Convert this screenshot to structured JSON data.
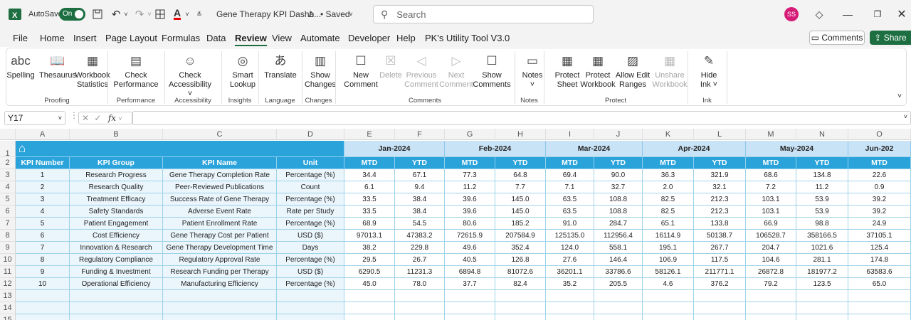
{
  "app": {
    "autosave_label": "AutoSave",
    "toggle": "On",
    "doc_title": "Gene Therapy KPI Dashb...",
    "saved": "• Saved",
    "search_placeholder": "Search",
    "avatar": "SS"
  },
  "menu": [
    "File",
    "Home",
    "Insert",
    "Page Layout",
    "Formulas",
    "Data",
    "Review",
    "View",
    "Automate",
    "Developer",
    "Help",
    "PK's Utility Tool V3.0"
  ],
  "comments_btn": "Comments",
  "share_btn": "Share",
  "ribbon": {
    "buttons": [
      {
        "l1": "Spelling",
        "l2": "",
        "icon": "spelling-icon",
        "dis": false
      },
      {
        "l1": "Thesaurus",
        "l2": "",
        "icon": "thesaurus-icon",
        "dis": false
      },
      {
        "l1": "Workbook",
        "l2": "Statistics",
        "icon": "statistics-icon",
        "dis": false
      },
      {
        "l1": "Check",
        "l2": "Performance",
        "icon": "performance-icon",
        "dis": false
      },
      {
        "l1": "Check",
        "l2": "Accessibility ˅",
        "icon": "accessibility-icon",
        "dis": false
      },
      {
        "l1": "Smart",
        "l2": "Lookup",
        "icon": "lookup-icon",
        "dis": false
      },
      {
        "l1": "Translate",
        "l2": "",
        "icon": "translate-icon",
        "dis": false
      },
      {
        "l1": "Show",
        "l2": "Changes",
        "icon": "changes-icon",
        "dis": false
      },
      {
        "l1": "New",
        "l2": "Comment",
        "icon": "new-comment-icon",
        "dis": false
      },
      {
        "l1": "Delete",
        "l2": "",
        "icon": "delete-comment-icon",
        "dis": true
      },
      {
        "l1": "Previous",
        "l2": "Comment",
        "icon": "previous-comment-icon",
        "dis": true
      },
      {
        "l1": "Next",
        "l2": "Comment",
        "icon": "next-comment-icon",
        "dis": true
      },
      {
        "l1": "Show",
        "l2": "Comments",
        "icon": "show-comments-icon",
        "dis": false
      },
      {
        "l1": "Notes",
        "l2": "˅",
        "icon": "notes-icon",
        "dis": false
      },
      {
        "l1": "Protect",
        "l2": "Sheet",
        "icon": "protect-sheet-icon",
        "dis": false
      },
      {
        "l1": "Protect",
        "l2": "Workbook",
        "icon": "protect-workbook-icon",
        "dis": false
      },
      {
        "l1": "Allow Edit",
        "l2": "Ranges",
        "icon": "allow-edit-icon",
        "dis": false
      },
      {
        "l1": "Unshare",
        "l2": "Workbook",
        "icon": "unshare-icon",
        "dis": true
      },
      {
        "l1": "Hide",
        "l2": "Ink ˅",
        "icon": "ink-icon",
        "dis": false
      }
    ],
    "groups": [
      "Proofing",
      "Performance",
      "Accessibility",
      "Insights",
      "Language",
      "Changes",
      "Comments",
      "Notes",
      "Protect",
      "Ink"
    ]
  },
  "namebox": "Y17",
  "fx": "fx",
  "columns": [
    "A",
    "B",
    "C",
    "D",
    "E",
    "F",
    "G",
    "H",
    "I",
    "J",
    "K",
    "L",
    "M",
    "N",
    "O"
  ],
  "headers": [
    "KPI Number",
    "KPI Group",
    "KPI Name",
    "Unit"
  ],
  "months": [
    "Jan-2024",
    "Feb-2024",
    "Mar-2024",
    "Apr-2024",
    "May-2024",
    "Jun-202"
  ],
  "sub": [
    "MTD",
    "YTD"
  ],
  "rows": [
    [
      "1",
      "Research Progress",
      "Gene Therapy Completion Rate",
      "Percentage (%)",
      "34.4",
      "67.1",
      "77.3",
      "64.8",
      "69.4",
      "90.0",
      "36.3",
      "321.9",
      "68.6",
      "134.8",
      "22.6"
    ],
    [
      "2",
      "Research Quality",
      "Peer-Reviewed Publications",
      "Count",
      "6.1",
      "9.4",
      "11.2",
      "7.7",
      "7.1",
      "32.7",
      "2.0",
      "32.1",
      "7.2",
      "11.2",
      "0.9"
    ],
    [
      "3",
      "Treatment Efficacy",
      "Success Rate of Gene Therapy",
      "Percentage (%)",
      "33.5",
      "38.4",
      "39.6",
      "145.0",
      "63.5",
      "108.8",
      "82.5",
      "212.3",
      "103.1",
      "53.9",
      "39.2"
    ],
    [
      "4",
      "Safety Standards",
      "Adverse Event Rate",
      "Rate per Study",
      "33.5",
      "38.4",
      "39.6",
      "145.0",
      "63.5",
      "108.8",
      "82.5",
      "212.3",
      "103.1",
      "53.9",
      "39.2"
    ],
    [
      "5",
      "Patient Engagement",
      "Patient Enrollment Rate",
      "Percentage (%)",
      "68.9",
      "54.5",
      "80.6",
      "185.2",
      "91.0",
      "284.7",
      "65.1",
      "133.8",
      "66.9",
      "98.8",
      "24.9"
    ],
    [
      "6",
      "Cost Efficiency",
      "Gene Therapy Cost per Patient",
      "USD ($)",
      "97013.1",
      "47383.2",
      "72615.9",
      "207584.9",
      "125135.0",
      "112956.4",
      "16114.9",
      "50138.7",
      "106528.7",
      "358166.5",
      "37105.1"
    ],
    [
      "7",
      "Innovation & Research",
      "Gene Therapy Development Time",
      "Days",
      "38.2",
      "229.8",
      "49.6",
      "352.4",
      "124.0",
      "558.1",
      "195.1",
      "267.7",
      "204.7",
      "1021.6",
      "125.4"
    ],
    [
      "8",
      "Regulatory Compliance",
      "Regulatory Approval Rate",
      "Percentage (%)",
      "29.5",
      "26.7",
      "40.5",
      "126.8",
      "27.6",
      "146.4",
      "106.9",
      "117.5",
      "104.6",
      "281.1",
      "174.8"
    ],
    [
      "9",
      "Funding & Investment",
      "Research Funding per Therapy",
      "USD ($)",
      "6290.5",
      "11231.3",
      "6894.8",
      "81072.6",
      "36201.1",
      "33786.6",
      "58126.1",
      "211771.1",
      "26872.8",
      "181977.2",
      "63583.6"
    ],
    [
      "10",
      "Operational Efficiency",
      "Manufacturing Efficiency",
      "Percentage (%)",
      "45.0",
      "78.0",
      "37.7",
      "82.4",
      "35.2",
      "205.5",
      "4.6",
      "376.2",
      "79.2",
      "123.5",
      "65.0"
    ]
  ],
  "row_numbers": [
    "1",
    "2",
    "3",
    "4",
    "5",
    "6",
    "7",
    "8",
    "9",
    "10",
    "11",
    "12",
    "13",
    "14",
    "15"
  ]
}
